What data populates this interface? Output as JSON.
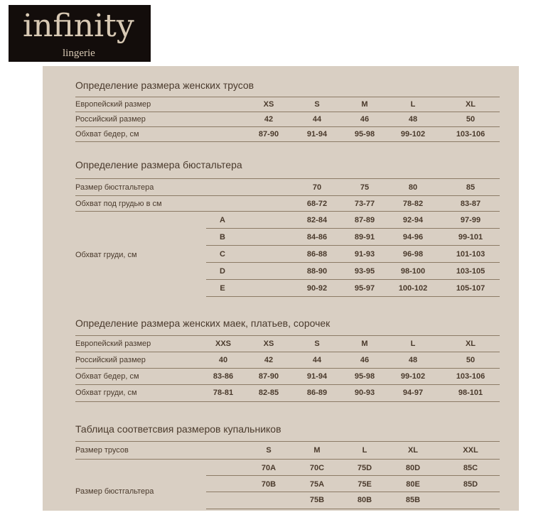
{
  "logo": {
    "name": "infinity",
    "tagline": "lingerie"
  },
  "colors": {
    "panel": "#d9cfc3",
    "text": "#4a3a2c",
    "rule": "#8c7b66",
    "logo_bg": "#130d0b"
  },
  "tables": [
    {
      "title": "Определение размера женских трусов",
      "rows": [
        {
          "label": "Европейский размер",
          "values": [
            "XS",
            "S",
            "M",
            "L",
            "XL"
          ]
        },
        {
          "label": "Российский размер",
          "values": [
            "42",
            "44",
            "46",
            "48",
            "50"
          ]
        },
        {
          "label": "Обхват бедер, см",
          "values": [
            "87-90",
            "91-94",
            "95-98",
            "99-102",
            "103-106"
          ]
        }
      ]
    },
    {
      "title": "Определение размера бюстальтера",
      "rows": [
        {
          "label": "Размер бюстгальтера",
          "values": [
            "70",
            "75",
            "80",
            "85"
          ]
        },
        {
          "label": "Обхват под грудью в см",
          "values": [
            "68-72",
            "73-77",
            "78-82",
            "83-87"
          ]
        }
      ],
      "group": {
        "label": "Обхват груди, см",
        "rows": [
          {
            "cup": "A",
            "values": [
              "82-84",
              "87-89",
              "92-94",
              "97-99"
            ]
          },
          {
            "cup": "B",
            "values": [
              "84-86",
              "89-91",
              "94-96",
              "99-101"
            ]
          },
          {
            "cup": "C",
            "values": [
              "86-88",
              "91-93",
              "96-98",
              "101-103"
            ]
          },
          {
            "cup": "D",
            "values": [
              "88-90",
              "93-95",
              "98-100",
              "103-105"
            ]
          },
          {
            "cup": "E",
            "values": [
              "90-92",
              "95-97",
              "100-102",
              "105-107"
            ]
          }
        ]
      }
    },
    {
      "title": "Определение размера женских маек, платьев, сорочек",
      "rows": [
        {
          "label": "Европейский размер",
          "values": [
            "XXS",
            "XS",
            "S",
            "M",
            "L",
            "XL"
          ]
        },
        {
          "label": "Российский размер",
          "values": [
            "40",
            "42",
            "44",
            "46",
            "48",
            "50"
          ]
        },
        {
          "label": "Обхват бедер, см",
          "values": [
            "83-86",
            "87-90",
            "91-94",
            "95-98",
            "99-102",
            "103-106"
          ]
        },
        {
          "label": "Обхват груди, см",
          "values": [
            "78-81",
            "82-85",
            "86-89",
            "90-93",
            "94-97",
            "98-101"
          ]
        }
      ]
    },
    {
      "title": "Таблица соответсвия размеров купальников",
      "rows": [
        {
          "label": "Размер трусов",
          "values": [
            "S",
            "M",
            "L",
            "XL",
            "XXL"
          ]
        }
      ],
      "group": {
        "label": "Размер бюстгальтера",
        "rows": [
          {
            "values": [
              "70A",
              "70C",
              "75D",
              "80D",
              "85C"
            ]
          },
          {
            "values": [
              "70B",
              "75A",
              "75E",
              "80E",
              "85D"
            ]
          },
          {
            "values": [
              "",
              "75B",
              "80B",
              "85B",
              ""
            ]
          }
        ]
      }
    }
  ]
}
